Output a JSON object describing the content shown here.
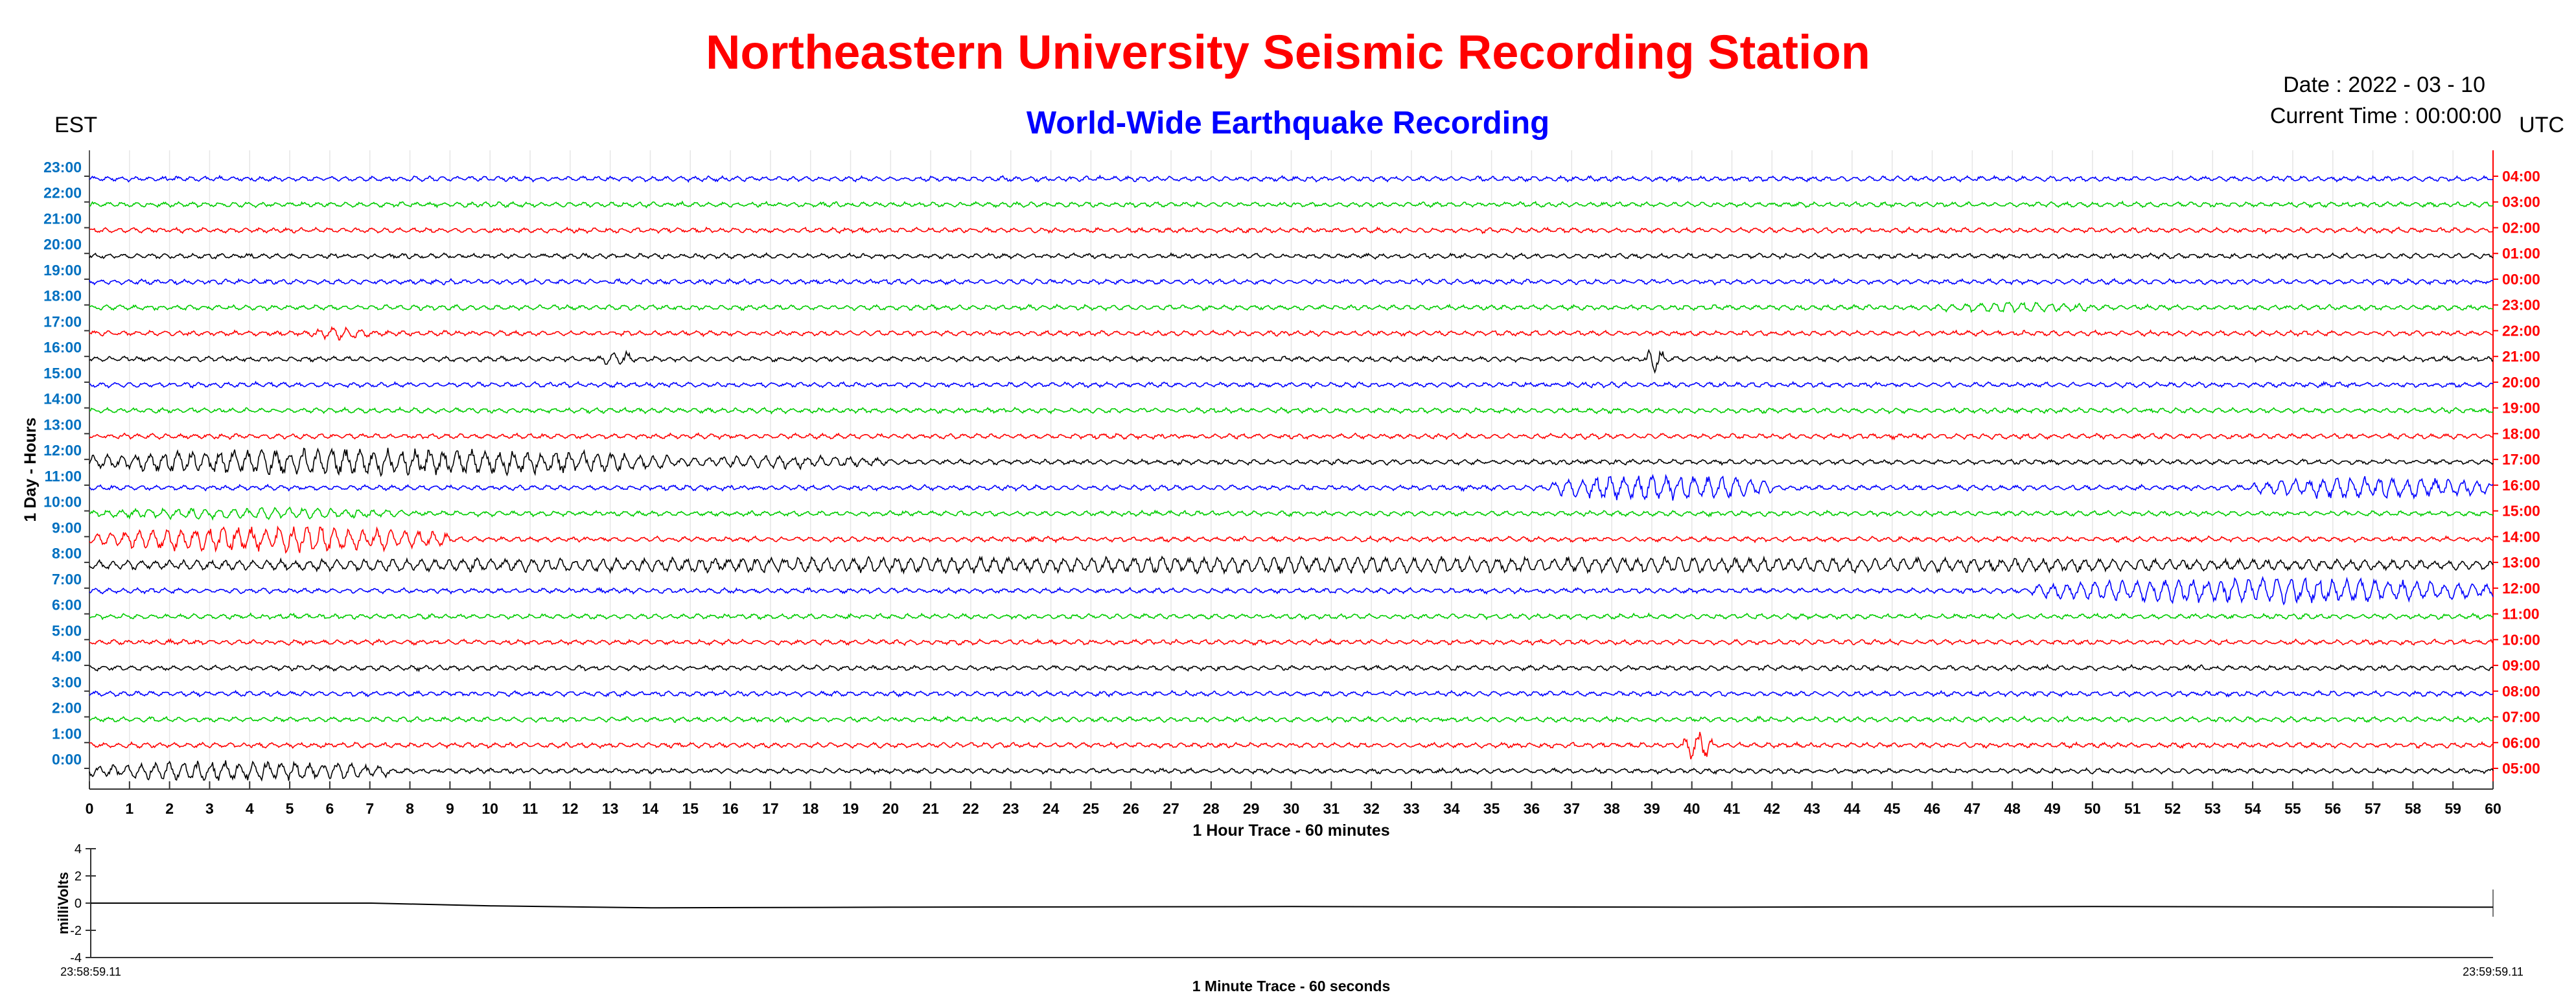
{
  "header": {
    "title": "Northeastern University Seismic Recording Station",
    "subtitle": "World-Wide Earthquake Recording",
    "date": "Date : 2022 - 03 - 10",
    "current_time": "Current Time : 00:00:00",
    "left_zone": "EST",
    "right_zone": "UTC"
  },
  "colors": {
    "title": "#ff0000",
    "subtitle": "#0000ff",
    "left_ticks": "#0070c0",
    "right_ticks": "#ff0000"
  },
  "chart_data": [
    {
      "type": "line",
      "title": "",
      "xlabel": "1 Hour Trace - 60 minutes",
      "ylabel": "1 Day - Hours",
      "xlim": [
        0,
        60
      ],
      "x_ticks": [
        "0",
        "1",
        "2",
        "3",
        "4",
        "5",
        "6",
        "7",
        "8",
        "9",
        "10",
        "11",
        "12",
        "13",
        "14",
        "15",
        "16",
        "17",
        "18",
        "19",
        "20",
        "21",
        "22",
        "23",
        "24",
        "25",
        "26",
        "27",
        "28",
        "29",
        "30",
        "31",
        "32",
        "33",
        "34",
        "35",
        "36",
        "37",
        "38",
        "39",
        "40",
        "41",
        "42",
        "43",
        "44",
        "45",
        "46",
        "47",
        "48",
        "49",
        "50",
        "51",
        "52",
        "53",
        "54",
        "55",
        "56",
        "57",
        "58",
        "59",
        "60"
      ],
      "grid": true,
      "trace_colors": [
        "#000000",
        "#ff0000",
        "#00cc00",
        "#0000ff"
      ],
      "series": [
        {
          "est": "0:00",
          "utc": "05:00",
          "color": "#000000",
          "bursts": [
            {
              "from": 0,
              "to": 7.5,
              "amp": 0.55
            }
          ]
        },
        {
          "est": "1:00",
          "utc": "06:00",
          "color": "#ff0000",
          "bursts": [
            {
              "from": 39.8,
              "to": 40.5,
              "amp": 0.9
            }
          ]
        },
        {
          "est": "2:00",
          "utc": "07:00",
          "color": "#00cc00",
          "bursts": []
        },
        {
          "est": "3:00",
          "utc": "08:00",
          "color": "#0000ff",
          "bursts": []
        },
        {
          "est": "4:00",
          "utc": "09:00",
          "color": "#000000",
          "bursts": []
        },
        {
          "est": "5:00",
          "utc": "10:00",
          "color": "#ff0000",
          "bursts": []
        },
        {
          "est": "6:00",
          "utc": "11:00",
          "color": "#00cc00",
          "bursts": []
        },
        {
          "est": "7:00",
          "utc": "12:00",
          "color": "#0000ff",
          "bursts": [
            {
              "from": 48.5,
              "to": 60,
              "amp": 0.7
            }
          ]
        },
        {
          "est": "8:00",
          "utc": "13:00",
          "color": "#000000",
          "bursts": [
            {
              "from": 0,
              "to": 60,
              "amp": 0.45
            }
          ]
        },
        {
          "est": "9:00",
          "utc": "14:00",
          "color": "#ff0000",
          "bursts": [
            {
              "from": 0,
              "to": 9,
              "amp": 0.7
            }
          ]
        },
        {
          "est": "10:00",
          "utc": "15:00",
          "color": "#00cc00",
          "bursts": [
            {
              "from": 0,
              "to": 8,
              "amp": 0.3
            }
          ]
        },
        {
          "est": "11:00",
          "utc": "16:00",
          "color": "#0000ff",
          "bursts": [
            {
              "from": 36.5,
              "to": 42,
              "amp": 0.7
            },
            {
              "from": 54,
              "to": 60,
              "amp": 0.6
            }
          ]
        },
        {
          "est": "12:00",
          "utc": "17:00",
          "color": "#000000",
          "bursts": [
            {
              "from": 0,
              "to": 14.5,
              "amp": 0.75
            },
            {
              "from": 14.5,
              "to": 20,
              "amp": 0.35
            }
          ]
        },
        {
          "est": "13:00",
          "utc": "18:00",
          "color": "#ff0000",
          "bursts": []
        },
        {
          "est": "14:00",
          "utc": "19:00",
          "color": "#00cc00",
          "bursts": []
        },
        {
          "est": "15:00",
          "utc": "20:00",
          "color": "#0000ff",
          "bursts": []
        },
        {
          "est": "16:00",
          "utc": "21:00",
          "color": "#000000",
          "bursts": [
            {
              "from": 12.8,
              "to": 13.6,
              "amp": 0.45
            },
            {
              "from": 38.9,
              "to": 39.3,
              "amp": 0.7
            }
          ]
        },
        {
          "est": "17:00",
          "utc": "22:00",
          "color": "#ff0000",
          "bursts": [
            {
              "from": 5.5,
              "to": 7,
              "amp": 0.35
            }
          ]
        },
        {
          "est": "18:00",
          "utc": "23:00",
          "color": "#00cc00",
          "bursts": [
            {
              "from": 46,
              "to": 50,
              "amp": 0.3
            }
          ]
        },
        {
          "est": "19:00",
          "utc": "00:00",
          "color": "#0000ff",
          "bursts": []
        },
        {
          "est": "20:00",
          "utc": "01:00",
          "color": "#000000",
          "bursts": []
        },
        {
          "est": "21:00",
          "utc": "02:00",
          "color": "#ff0000",
          "bursts": []
        },
        {
          "est": "22:00",
          "utc": "03:00",
          "color": "#00cc00",
          "bursts": []
        },
        {
          "est": "23:00",
          "utc": "04:00",
          "color": "#0000ff",
          "bursts": []
        }
      ]
    },
    {
      "type": "line",
      "title": "",
      "xlabel": "1 Minute Trace  - 60 seconds",
      "ylabel": "milliVolts",
      "ylim": [
        -4,
        4
      ],
      "y_ticks": [
        "4",
        "2",
        "0",
        "-2",
        "-4"
      ],
      "x_start_label": "23:58:59.11",
      "x_end_label": "23:59:59.11",
      "grid": false,
      "points": [
        [
          0,
          0
        ],
        [
          7,
          0
        ],
        [
          10,
          -0.2
        ],
        [
          14,
          -0.35
        ],
        [
          20,
          -0.3
        ],
        [
          30,
          -0.25
        ],
        [
          40,
          -0.3
        ],
        [
          50,
          -0.25
        ],
        [
          60,
          -0.3
        ]
      ]
    }
  ]
}
